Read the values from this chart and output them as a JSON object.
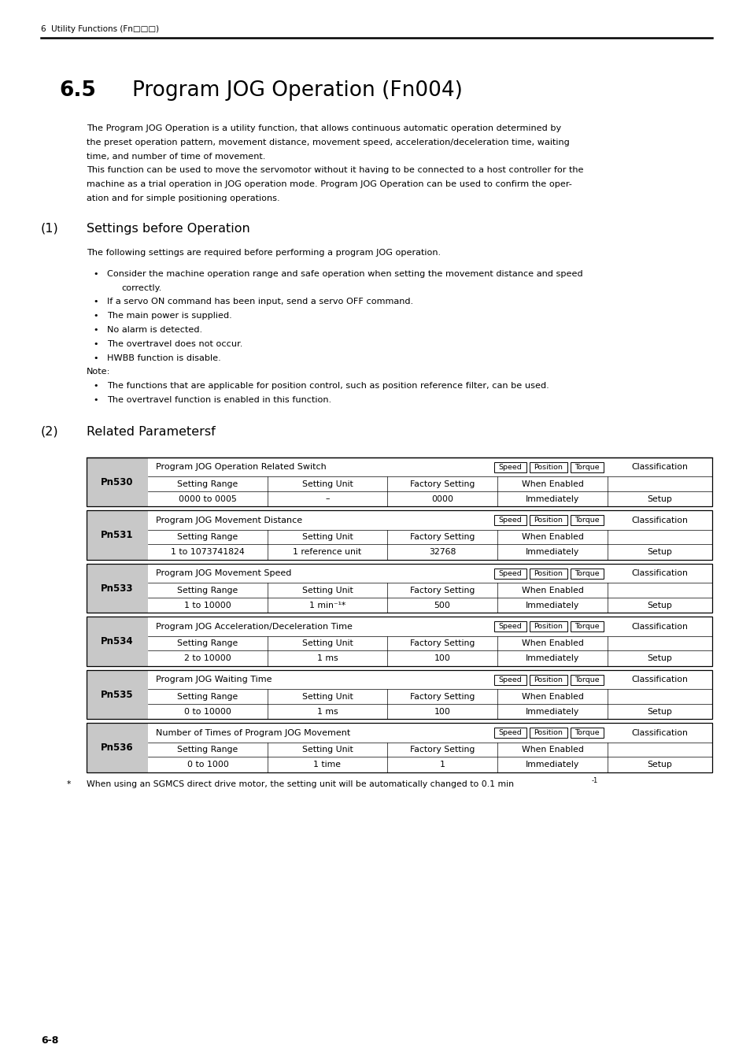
{
  "bg_color": "#ffffff",
  "page_width": 9.54,
  "page_height": 13.5,
  "header_text": "6  Utility Functions (Fn□□□)",
  "section_number": "6.5",
  "section_title": "Program JOG Operation (Fn004)",
  "body_lines": [
    "The Program JOG Operation is a utility function, that allows continuous automatic operation determined by",
    "the preset operation pattern, movement distance, movement speed, acceleration/deceleration time, waiting",
    "time, and number of time of movement.",
    "This function can be used to move the servomotor without it having to be connected to a host controller for the",
    "machine as a trial operation in JOG operation mode. Program JOG Operation can be used to confirm the oper-",
    "ation and for simple positioning operations."
  ],
  "subsection1_number": "(1)",
  "subsection1_title": "Settings before Operation",
  "settings_intro": "The following settings are required before performing a program JOG operation.",
  "bullet_points": [
    [
      "Consider the machine operation range and safe operation when setting the movement distance and speed",
      "correctly."
    ],
    [
      "If a servo ON command has been input, send a servo OFF command."
    ],
    [
      "The main power is supplied."
    ],
    [
      "No alarm is detected."
    ],
    [
      "The overtravel does not occur."
    ],
    [
      "HWBB function is disable."
    ]
  ],
  "note_label": "Note:",
  "note_bullets": [
    "The functions that are applicable for position control, such as position reference filter, can be used.",
    "The overtravel function is enabled in this function."
  ],
  "subsection2_number": "(2)",
  "subsection2_title": "Related Parametersf",
  "table_rows": [
    {
      "param": "Pn530",
      "title": "Program JOG Operation Related Switch",
      "tags": [
        "Speed",
        "Position",
        "Torque"
      ],
      "setting_range": "0000 to 0005",
      "setting_unit": "–",
      "factory_setting": "0000",
      "when_enabled": "Immediately",
      "classification": "Setup"
    },
    {
      "param": "Pn531",
      "title": "Program JOG Movement Distance",
      "tags": [
        "Speed",
        "Position",
        "Torque"
      ],
      "setting_range": "1 to 1073741824",
      "setting_unit": "1 reference unit",
      "factory_setting": "32768",
      "when_enabled": "Immediately",
      "classification": "Setup"
    },
    {
      "param": "Pn533",
      "title": "Program JOG Movement Speed",
      "tags": [
        "Speed",
        "Position",
        "Torque"
      ],
      "setting_range": "1 to 10000",
      "setting_unit": "1 min⁻¹*",
      "factory_setting": "500",
      "when_enabled": "Immediately",
      "classification": "Setup"
    },
    {
      "param": "Pn534",
      "title": "Program JOG Acceleration/Deceleration Time",
      "tags": [
        "Speed",
        "Position",
        "Torque"
      ],
      "setting_range": "2 to 10000",
      "setting_unit": "1 ms",
      "factory_setting": "100",
      "when_enabled": "Immediately",
      "classification": "Setup"
    },
    {
      "param": "Pn535",
      "title": "Program JOG Waiting Time",
      "tags": [
        "Speed",
        "Position",
        "Torque"
      ],
      "setting_range": "0 to 10000",
      "setting_unit": "1 ms",
      "factory_setting": "100",
      "when_enabled": "Immediately",
      "classification": "Setup"
    },
    {
      "param": "Pn536",
      "title": "Number of Times of Program JOG Movement",
      "tags": [
        "Speed",
        "Position",
        "Torque"
      ],
      "setting_range": "0 to 1000",
      "setting_unit": "1 time",
      "factory_setting": "1",
      "when_enabled": "Immediately",
      "classification": "Setup"
    }
  ],
  "footnote_star": "*",
  "footnote_text": "When using an SGMCS direct drive motor, the setting unit will be automatically changed to 0.1 min",
  "footnote_sup": "-1",
  "page_number": "6-8",
  "gray_color": "#c8c8c8",
  "table_header_cols": [
    "Setting Range",
    "Setting Unit",
    "Factory Setting",
    "When Enabled"
  ]
}
